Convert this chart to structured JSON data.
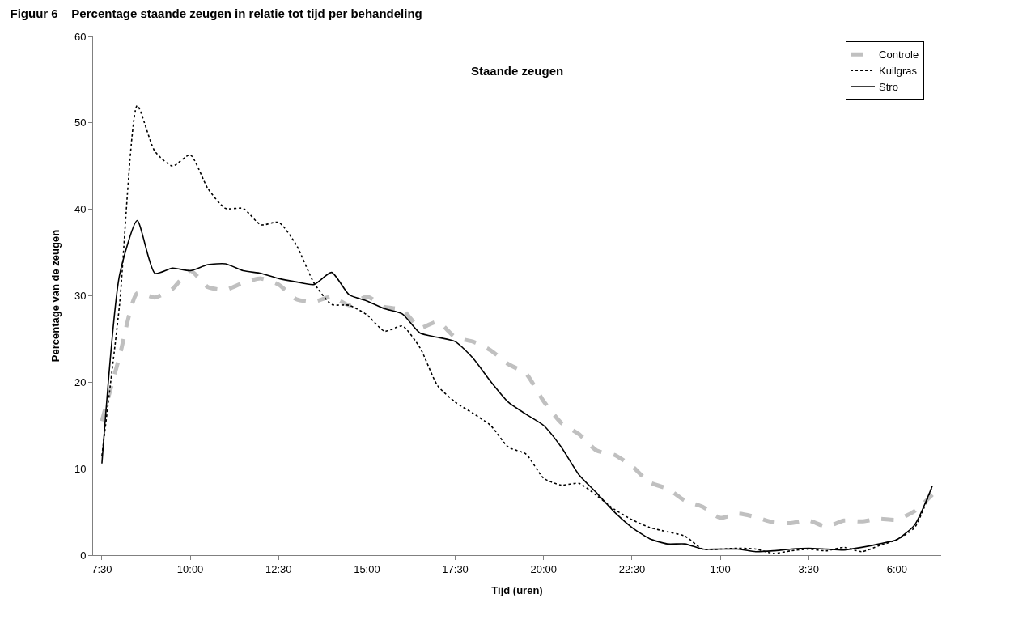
{
  "chart_data": {
    "type": "line",
    "title": "Figuur 6    Percentage staande zeugen in relatie tot tijd per behandeling",
    "subtitle": "Staande zeugen",
    "xlabel": "Tijd (uren)",
    "ylabel": "Percentage van de zeugen",
    "categories": [
      "7:30",
      null,
      null,
      null,
      null,
      "10:00",
      null,
      null,
      null,
      null,
      "12:30",
      null,
      null,
      null,
      null,
      "15:00",
      null,
      null,
      null,
      null,
      "17:30",
      null,
      null,
      null,
      null,
      "20:00",
      null,
      null,
      null,
      null,
      "22:30",
      null,
      null,
      null,
      null,
      "1:00",
      null,
      null,
      null,
      null,
      "3:30",
      null,
      null,
      null,
      null,
      "6:00",
      null,
      null
    ],
    "series": [
      {
        "name": "Controle",
        "color": "#c0c0c0",
        "line_style": "dashed",
        "values": [
          15.5,
          23,
          30.3,
          29.8,
          30.8,
          32.9,
          31.0,
          30.7,
          31.5,
          32.0,
          31.3,
          29.6,
          29.3,
          29.9,
          28.9,
          29.9,
          28.7,
          28.4,
          26.3,
          27.0,
          25.2,
          24.7,
          23.7,
          22.1,
          21.0,
          17.8,
          15.3,
          14.0,
          12.1,
          11.6,
          10.3,
          8.4,
          7.7,
          6.3,
          5.6,
          4.3,
          4.8,
          4.4,
          3.8,
          3.7,
          4.0,
          3.3,
          4.0,
          3.9,
          4.2,
          4.1,
          5.1,
          7.0
        ]
      },
      {
        "name": "Kuilgras",
        "color": "#000000",
        "line_style": "dotted",
        "values": [
          11.5,
          29,
          52,
          46.7,
          45.0,
          46.3,
          42.4,
          40.1,
          40.1,
          38.2,
          38.5,
          35.9,
          31.5,
          29.0,
          28.9,
          27.8,
          25.9,
          26.5,
          24,
          19.6,
          17.7,
          16.4,
          15.0,
          12.5,
          11.7,
          8.9,
          8.1,
          8.3,
          6.9,
          5.3,
          4.1,
          3.2,
          2.7,
          2.2,
          0.7,
          0.7,
          0.8,
          0.7,
          0.2,
          0.5,
          0.7,
          0.5,
          0.9,
          0.4,
          1.1,
          1.8,
          3.2,
          8.0
        ]
      },
      {
        "name": "Stro",
        "color": "#000000",
        "line_style": "solid",
        "values": [
          10.6,
          32.4,
          38.7,
          32.6,
          33.2,
          32.9,
          33.6,
          33.7,
          32.9,
          32.6,
          32.0,
          31.6,
          31.3,
          32.7,
          30.1,
          29.4,
          28.5,
          27.9,
          25.7,
          25.2,
          24.7,
          22.8,
          20.1,
          17.7,
          16.3,
          15.0,
          12.5,
          9.3,
          7.2,
          5.0,
          3.2,
          1.9,
          1.3,
          1.3,
          0.7,
          0.7,
          0.7,
          0.4,
          0.5,
          0.7,
          0.8,
          0.7,
          0.6,
          0.9,
          1.3,
          1.8,
          3.5,
          8.0
        ]
      }
    ],
    "ylim": [
      0,
      60
    ],
    "yticks": [
      0,
      10,
      20,
      30,
      40,
      50,
      60
    ],
    "legend": "top right"
  }
}
